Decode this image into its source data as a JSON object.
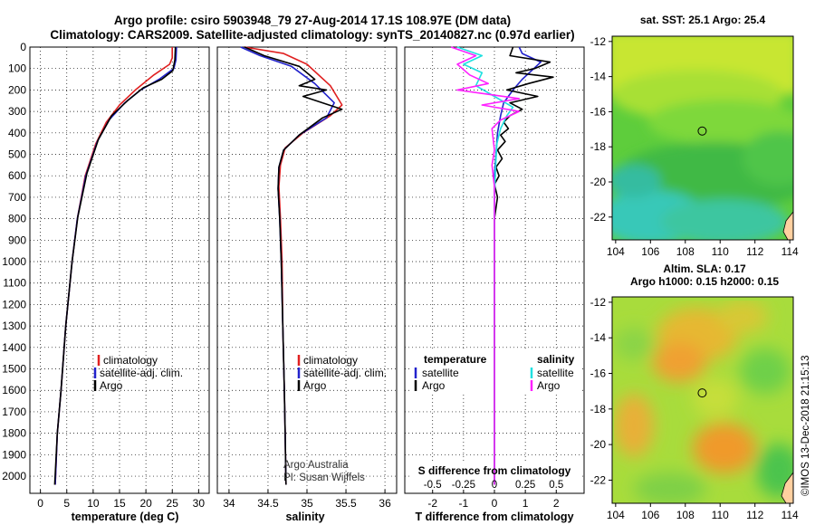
{
  "header": {
    "line1": "Argo profile: csiro 5903948_79 27-Aug-2014 17.1S 108.97E (DM data)",
    "line2": "Climatology: CARS2009. Satellite-adjusted climatology: synTS_20140827.nc (0.97d earlier)"
  },
  "colors": {
    "climatology": "#e02020",
    "satellite": "#2222cc",
    "argo": "#000000",
    "sat_salinity": "#20e0e0",
    "argo_salinity": "#ff20ff",
    "map_marker": "#000000"
  },
  "credit": "Argo Australia",
  "pi": "PI: Susan Wijffels",
  "imos_stamp": "©IMOS 13-Dec-2018 21:15:13",
  "chart_data": [
    {
      "type": "line",
      "id": "temperature",
      "xlabel": "temperature (deg C)",
      "ylabel": "",
      "xlim": [
        -2,
        32
      ],
      "ylim": [
        2080,
        0
      ],
      "xticks": [
        0,
        5,
        10,
        15,
        20,
        25,
        30
      ],
      "xtick_labels": [
        "0",
        "5",
        "10",
        "15",
        "20",
        "25",
        "30"
      ],
      "yticks": [
        0,
        100,
        200,
        300,
        400,
        500,
        600,
        700,
        800,
        900,
        1000,
        1100,
        1200,
        1300,
        1400,
        1500,
        1600,
        1700,
        1800,
        1900,
        2000
      ],
      "ytick_labels": [
        "0",
        "100",
        "200",
        "300",
        "400",
        "500",
        "600",
        "700",
        "800",
        "900",
        "1000",
        "1100",
        "1200",
        "1300",
        "1400",
        "1500",
        "1600",
        "1700",
        "1800",
        "1900",
        "2000"
      ],
      "legend": [
        "climatology",
        "satellite-adj. clim.",
        "Argo"
      ],
      "legend_position": "lower-right",
      "series": [
        {
          "name": "climatology",
          "color": "#e02020",
          "points": [
            [
              25,
              0
            ],
            [
              25,
              50
            ],
            [
              24.5,
              80
            ],
            [
              21.5,
              130
            ],
            [
              18,
              200
            ],
            [
              15,
              270
            ],
            [
              12.5,
              350
            ],
            [
              10.5,
              450
            ],
            [
              8.5,
              600
            ],
            [
              7,
              800
            ],
            [
              6,
              1000
            ],
            [
              4.8,
              1300
            ],
            [
              3.9,
              1600
            ],
            [
              3.2,
              1800
            ],
            [
              2.8,
              2040
            ]
          ]
        },
        {
          "name": "satellite-adj. clim.",
          "color": "#2222cc",
          "points": [
            [
              25.8,
              0
            ],
            [
              25.7,
              60
            ],
            [
              25.3,
              100
            ],
            [
              22.5,
              150
            ],
            [
              19,
              200
            ],
            [
              16,
              260
            ],
            [
              13,
              340
            ],
            [
              10.8,
              440
            ],
            [
              8.6,
              600
            ],
            [
              7,
              800
            ],
            [
              6,
              1000
            ],
            [
              4.8,
              1300
            ],
            [
              3.9,
              1600
            ],
            [
              3.2,
              1800
            ],
            [
              2.8,
              2040
            ]
          ]
        },
        {
          "name": "Argo",
          "color": "#000000",
          "points": [
            [
              25.6,
              0
            ],
            [
              25.5,
              60
            ],
            [
              25.1,
              110
            ],
            [
              23,
              150
            ],
            [
              19.5,
              190
            ],
            [
              16.5,
              250
            ],
            [
              13.5,
              320
            ],
            [
              11,
              430
            ],
            [
              8.8,
              590
            ],
            [
              7.1,
              790
            ],
            [
              6,
              1000
            ],
            [
              4.8,
              1300
            ],
            [
              3.9,
              1600
            ],
            [
              3.2,
              1800
            ],
            [
              2.7,
              2040
            ]
          ]
        }
      ]
    },
    {
      "type": "line",
      "id": "salinity",
      "xlabel": "salinity",
      "xlim": [
        33.85,
        36.15
      ],
      "ylim": [
        2080,
        0
      ],
      "xticks": [
        34,
        34.5,
        35,
        35.5,
        36
      ],
      "xtick_labels": [
        "34",
        "34.5",
        "35",
        "35.5",
        "36"
      ],
      "legend": [
        "climatology",
        "satellite-adj. clim.",
        "Argo"
      ],
      "legend_position": "lower-right",
      "series": [
        {
          "name": "climatology",
          "color": "#e02020",
          "points": [
            [
              34.2,
              0
            ],
            [
              34.7,
              30
            ],
            [
              35.0,
              80
            ],
            [
              35.3,
              180
            ],
            [
              35.45,
              270
            ],
            [
              35.3,
              320
            ],
            [
              34.95,
              400
            ],
            [
              34.72,
              470
            ],
            [
              34.66,
              550
            ],
            [
              34.64,
              650
            ],
            [
              34.66,
              800
            ],
            [
              34.68,
              1000
            ],
            [
              34.69,
              1300
            ],
            [
              34.71,
              1600
            ],
            [
              34.72,
              1800
            ],
            [
              34.73,
              2040
            ]
          ]
        },
        {
          "name": "satellite-adj. clim.",
          "color": "#2222cc",
          "points": [
            [
              34.15,
              0
            ],
            [
              34.4,
              40
            ],
            [
              34.8,
              90
            ],
            [
              35.1,
              170
            ],
            [
              35.35,
              260
            ],
            [
              35.25,
              330
            ],
            [
              34.9,
              410
            ],
            [
              34.7,
              480
            ],
            [
              34.64,
              560
            ],
            [
              34.63,
              660
            ],
            [
              34.65,
              800
            ],
            [
              34.67,
              1000
            ],
            [
              34.69,
              1300
            ],
            [
              34.71,
              1600
            ],
            [
              34.72,
              1800
            ],
            [
              34.73,
              2040
            ]
          ]
        },
        {
          "name": "Argo",
          "color": "#000000",
          "points": [
            [
              34.2,
              0
            ],
            [
              34.45,
              40
            ],
            [
              34.9,
              90
            ],
            [
              35.1,
              150
            ],
            [
              34.9,
              180
            ],
            [
              35.25,
              200
            ],
            [
              34.95,
              230
            ],
            [
              35.2,
              260
            ],
            [
              35.45,
              290
            ],
            [
              35.2,
              330
            ],
            [
              34.9,
              410
            ],
            [
              34.7,
              480
            ],
            [
              34.64,
              560
            ],
            [
              34.63,
              660
            ],
            [
              34.65,
              800
            ],
            [
              34.67,
              1000
            ],
            [
              34.69,
              1300
            ],
            [
              34.71,
              1600
            ],
            [
              34.72,
              1800
            ],
            [
              34.73,
              2040
            ]
          ]
        }
      ]
    },
    {
      "type": "line",
      "id": "difference",
      "xlabel": "T difference from climatology",
      "xlim": [
        -2.9,
        2.9
      ],
      "ylim": [
        2080,
        0
      ],
      "xticks": [
        -2,
        -1,
        0,
        1,
        2
      ],
      "xtick_labels": [
        "-2",
        "-1",
        "0",
        "1",
        "2"
      ],
      "s_axis_title": "S difference from climatology",
      "s_xticks": [
        -0.5,
        -0.25,
        0,
        0.25,
        0.5
      ],
      "s_xtick_labels": [
        "-0.5",
        "-0.25",
        "0",
        "0.25",
        "0.5"
      ],
      "legend_left_title": "temperature",
      "legend_left": [
        "satellite",
        "Argo"
      ],
      "legend_right_title": "salinity",
      "legend_right": [
        "satellite",
        "Argo"
      ],
      "series": [
        {
          "name": "T satellite",
          "color": "#2222cc",
          "points": [
            [
              0.8,
              0
            ],
            [
              0.9,
              30
            ],
            [
              1.5,
              70
            ],
            [
              1.2,
              110
            ],
            [
              0.9,
              150
            ],
            [
              0.6,
              200
            ],
            [
              0.3,
              260
            ],
            [
              0.2,
              320
            ],
            [
              0.1,
              400
            ],
            [
              0.05,
              500
            ],
            [
              0,
              600
            ],
            [
              0,
              800
            ],
            [
              0,
              1000
            ],
            [
              0,
              2040
            ]
          ]
        },
        {
          "name": "T Argo",
          "color": "#000000",
          "points": [
            [
              0.6,
              0
            ],
            [
              0.5,
              40
            ],
            [
              1.8,
              70
            ],
            [
              1.3,
              100
            ],
            [
              0.7,
              120
            ],
            [
              1.9,
              140
            ],
            [
              1.1,
              170
            ],
            [
              0.4,
              200
            ],
            [
              1.4,
              230
            ],
            [
              0.5,
              260
            ],
            [
              0.9,
              290
            ],
            [
              0.5,
              320
            ],
            [
              0.3,
              350
            ],
            [
              0.45,
              380
            ],
            [
              0.2,
              410
            ],
            [
              0.35,
              440
            ],
            [
              0.1,
              480
            ],
            [
              0.25,
              520
            ],
            [
              0.05,
              560
            ],
            [
              0.15,
              600
            ],
            [
              0,
              640
            ],
            [
              0.1,
              700
            ],
            [
              0,
              800
            ],
            [
              0,
              1000
            ],
            [
              0,
              2040
            ]
          ]
        },
        {
          "name": "S satellite",
          "color": "#20e0e0",
          "points": [
            [
              -0.3,
              0
            ],
            [
              -0.1,
              40
            ],
            [
              -0.25,
              80
            ],
            [
              -0.1,
              120
            ],
            [
              -0.15,
              180
            ],
            [
              0,
              230
            ],
            [
              0.15,
              280
            ],
            [
              0.1,
              320
            ],
            [
              0.05,
              380
            ],
            [
              0.02,
              450
            ],
            [
              0.01,
              550
            ],
            [
              0,
              700
            ],
            [
              0,
              1000
            ],
            [
              0,
              2040
            ]
          ]
        },
        {
          "name": "S Argo",
          "color": "#ff20ff",
          "points": [
            [
              -0.35,
              0
            ],
            [
              -0.15,
              40
            ],
            [
              -0.3,
              80
            ],
            [
              -0.2,
              130
            ],
            [
              -0.05,
              170
            ],
            [
              -0.3,
              200
            ],
            [
              0.2,
              240
            ],
            [
              -0.1,
              270
            ],
            [
              0.2,
              300
            ],
            [
              0.05,
              340
            ],
            [
              -0.02,
              380
            ],
            [
              0,
              480
            ],
            [
              -0.02,
              550
            ],
            [
              0,
              650
            ],
            [
              0,
              1000
            ],
            [
              0,
              2040
            ]
          ]
        }
      ]
    },
    {
      "type": "heatmap",
      "id": "sst_map",
      "title": "sat. SST: 25.1  Argo: 25.4",
      "xlim": [
        103.8,
        114.2
      ],
      "ylim": [
        -23.3,
        -11.7
      ],
      "xticks": [
        104,
        106,
        108,
        110,
        112,
        114
      ],
      "xtick_labels": [
        "104",
        "106",
        "108",
        "110",
        "112",
        "114"
      ],
      "yticks": [
        -12,
        -14,
        -16,
        -18,
        -20,
        -22
      ],
      "ytick_labels": [
        "-12",
        "-14",
        "-16",
        "-18",
        "-20",
        "-22"
      ],
      "marker": {
        "lon": 108.97,
        "lat": -17.1
      }
    },
    {
      "type": "heatmap",
      "id": "sla_map",
      "title": "Altim. SLA: 0.17",
      "subtitle": "Argo h1000: 0.15 h2000: 0.15",
      "xlim": [
        103.8,
        114.2
      ],
      "ylim": [
        -23.3,
        -11.7
      ],
      "xticks": [
        104,
        106,
        108,
        110,
        112,
        114
      ],
      "xtick_labels": [
        "104",
        "106",
        "108",
        "110",
        "112",
        "114"
      ],
      "yticks": [
        -12,
        -14,
        -16,
        -18,
        -20,
        -22
      ],
      "ytick_labels": [
        "-12",
        "-14",
        "-16",
        "-18",
        "-20",
        "-22"
      ],
      "marker": {
        "lon": 108.97,
        "lat": -17.1
      }
    }
  ]
}
